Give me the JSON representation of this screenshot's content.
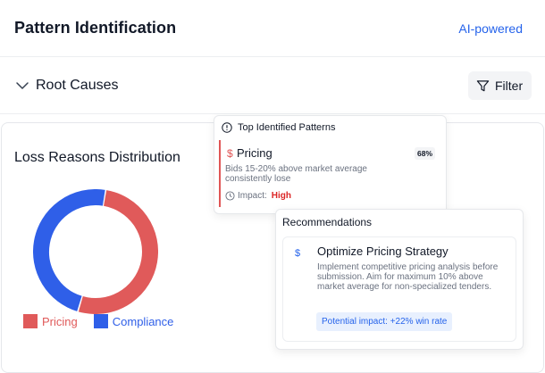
{
  "header": {
    "title": "Pattern Identification",
    "ai_label": "AI-powered"
  },
  "root_causes": {
    "label": "Root Causes",
    "filter_label": "Filter"
  },
  "chart_data": {
    "type": "pie",
    "title": "Loss Reasons Distribution",
    "categories": [
      "Pricing",
      "Compliance"
    ],
    "values": [
      52,
      48
    ],
    "colors": [
      "#e05a5a",
      "#2f5fe8"
    ],
    "legend": "bottom-left"
  },
  "patterns": {
    "title": "Top Identified Patterns",
    "items": [
      {
        "icon": "dollar-icon",
        "name": "Pricing",
        "percent": "68%",
        "description": "Bids 15-20% above market average consistently lose",
        "impact_label": "Impact:",
        "impact_value": "High"
      }
    ]
  },
  "recommendations": {
    "title": "Recommendations",
    "items": [
      {
        "icon": "dollar-icon",
        "name": "Optimize Pricing Strategy",
        "description": "Implement competitive pricing analysis before submission. Aim for maximum 10% above market average for non-specialized tenders.",
        "potential_impact": "Potential impact: +22% win rate"
      }
    ]
  }
}
